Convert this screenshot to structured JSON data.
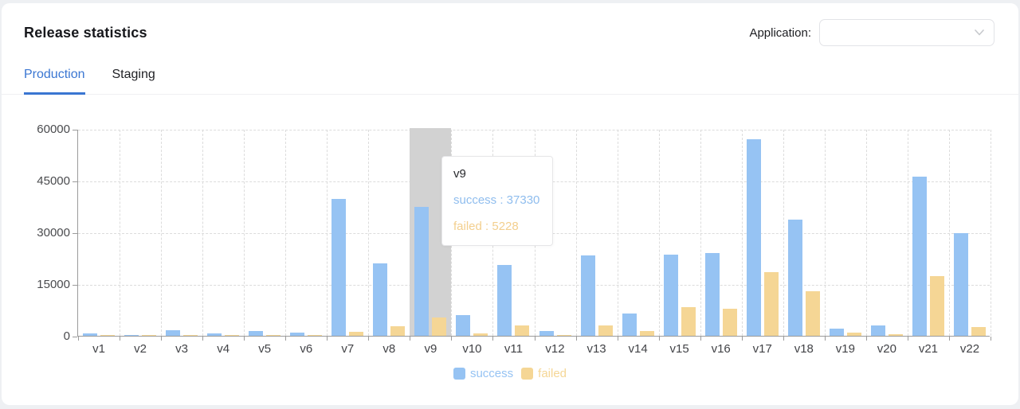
{
  "header": {
    "title": "Release statistics",
    "application_label": "Application:",
    "application_value": ""
  },
  "tabs": [
    {
      "label": "Production",
      "active": true
    },
    {
      "label": "Staging",
      "active": false
    }
  ],
  "colors": {
    "accent": "#3a76d2",
    "success": "#96c3f3",
    "failed": "#f5d695",
    "highlight_band": "#d2d2d2",
    "axis": "#9b9b9b",
    "grid": "#dcdcdc"
  },
  "chart_data": {
    "type": "bar",
    "title": "",
    "xlabel": "",
    "ylabel": "",
    "categories": [
      "v1",
      "v2",
      "v3",
      "v4",
      "v5",
      "v6",
      "v7",
      "v8",
      "v9",
      "v10",
      "v11",
      "v12",
      "v13",
      "v14",
      "v15",
      "v16",
      "v17",
      "v18",
      "v19",
      "v20",
      "v21",
      "v22"
    ],
    "series": [
      {
        "name": "success",
        "color": "#96c3f3",
        "values": [
          600,
          200,
          1600,
          650,
          1500,
          900,
          39700,
          21000,
          37330,
          5900,
          20500,
          1300,
          23200,
          6500,
          23600,
          24100,
          57000,
          33600,
          2100,
          3000,
          46200,
          29800
        ]
      },
      {
        "name": "failed",
        "color": "#f5d695",
        "values": [
          80,
          50,
          100,
          80,
          300,
          100,
          1100,
          2700,
          5228,
          600,
          3100,
          150,
          3100,
          1500,
          8400,
          7900,
          18500,
          12900,
          900,
          450,
          17200,
          2500
        ]
      }
    ],
    "ylim": [
      0,
      60000
    ],
    "yticks": [
      0,
      15000,
      30000,
      45000,
      60000
    ],
    "grid": true,
    "legend_position": "bottom",
    "highlighted_index": 8,
    "tooltip": {
      "category": "v9",
      "lines": [
        {
          "series": "success",
          "value": 37330,
          "color": "#8fbdee"
        },
        {
          "series": "failed",
          "value": 5228,
          "color": "#f3cf8e"
        }
      ]
    }
  },
  "legend": [
    {
      "label": "success",
      "color": "#96c3f3"
    },
    {
      "label": "failed",
      "color": "#f5d695"
    }
  ]
}
